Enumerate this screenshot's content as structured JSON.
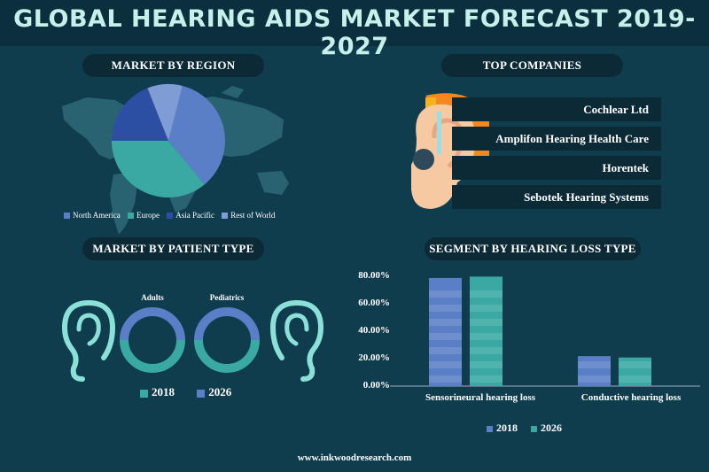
{
  "header": {
    "title": "GLOBAL HEARING AIDS MARKET FORECAST 2019-2027"
  },
  "sections": {
    "region": "MARKET BY REGION",
    "companies": "TOP COMPANIES",
    "patient": "MARKET BY PATIENT TYPE",
    "segment": "SEGMENT BY HEARING LOSS TYPE"
  },
  "companies": [
    "Cochlear Ltd",
    "Amplifon Hearing Health Care",
    "Horentek",
    "Sebotek Hearing Systems"
  ],
  "colors": {
    "north_america": "#5b7fc6",
    "europe": "#3aa9a3",
    "asia_pacific": "#2c4fa3",
    "rest_of_world": "#7f9cd4",
    "series_2018": "#5b7fc6",
    "series_2026": "#3aa9a3",
    "ring_2018": "#3aa9a3",
    "ring_2026": "#5b7fc6",
    "ear_outline": "#8be0d8",
    "orange": "#f5871f",
    "skin": "#f6c9a3"
  },
  "icons": [
    "world-map-icon",
    "ear-icon",
    "hearing-aid-icon"
  ],
  "footer": "www.inkwoodresearch.com",
  "chart_data": [
    {
      "type": "pie",
      "title": "MARKET BY REGION",
      "categories": [
        "North America",
        "Europe",
        "Asia Pacific",
        "Rest of World"
      ],
      "values": [
        35,
        36,
        19,
        10
      ],
      "legend": "bottom"
    },
    {
      "type": "pie",
      "title": "MARKET BY PATIENT TYPE",
      "rings": [
        {
          "label": "Adults",
          "values": [
            {
              "name": "2018",
              "value": 50
            },
            {
              "name": "2026",
              "value": 50
            }
          ]
        },
        {
          "label": "Pediatrics",
          "values": [
            {
              "name": "2018",
              "value": 50
            },
            {
              "name": "2026",
              "value": 50
            }
          ]
        }
      ],
      "legend_entries": [
        "2018",
        "2026"
      ],
      "legend": "bottom"
    },
    {
      "type": "bar",
      "title": "SEGMENT BY HEARING LOSS TYPE",
      "categories": [
        "Sensorineural hearing loss",
        "Conductive hearing loss"
      ],
      "series": [
        {
          "name": "2018",
          "values": [
            77.5,
            21.5
          ]
        },
        {
          "name": "2026",
          "values": [
            78.5,
            20.5
          ]
        }
      ],
      "ylim": [
        0,
        80
      ],
      "yticks": [
        "0.00%",
        "20.00%",
        "40.00%",
        "60.00%",
        "80.00%"
      ],
      "legend": "bottom"
    }
  ]
}
